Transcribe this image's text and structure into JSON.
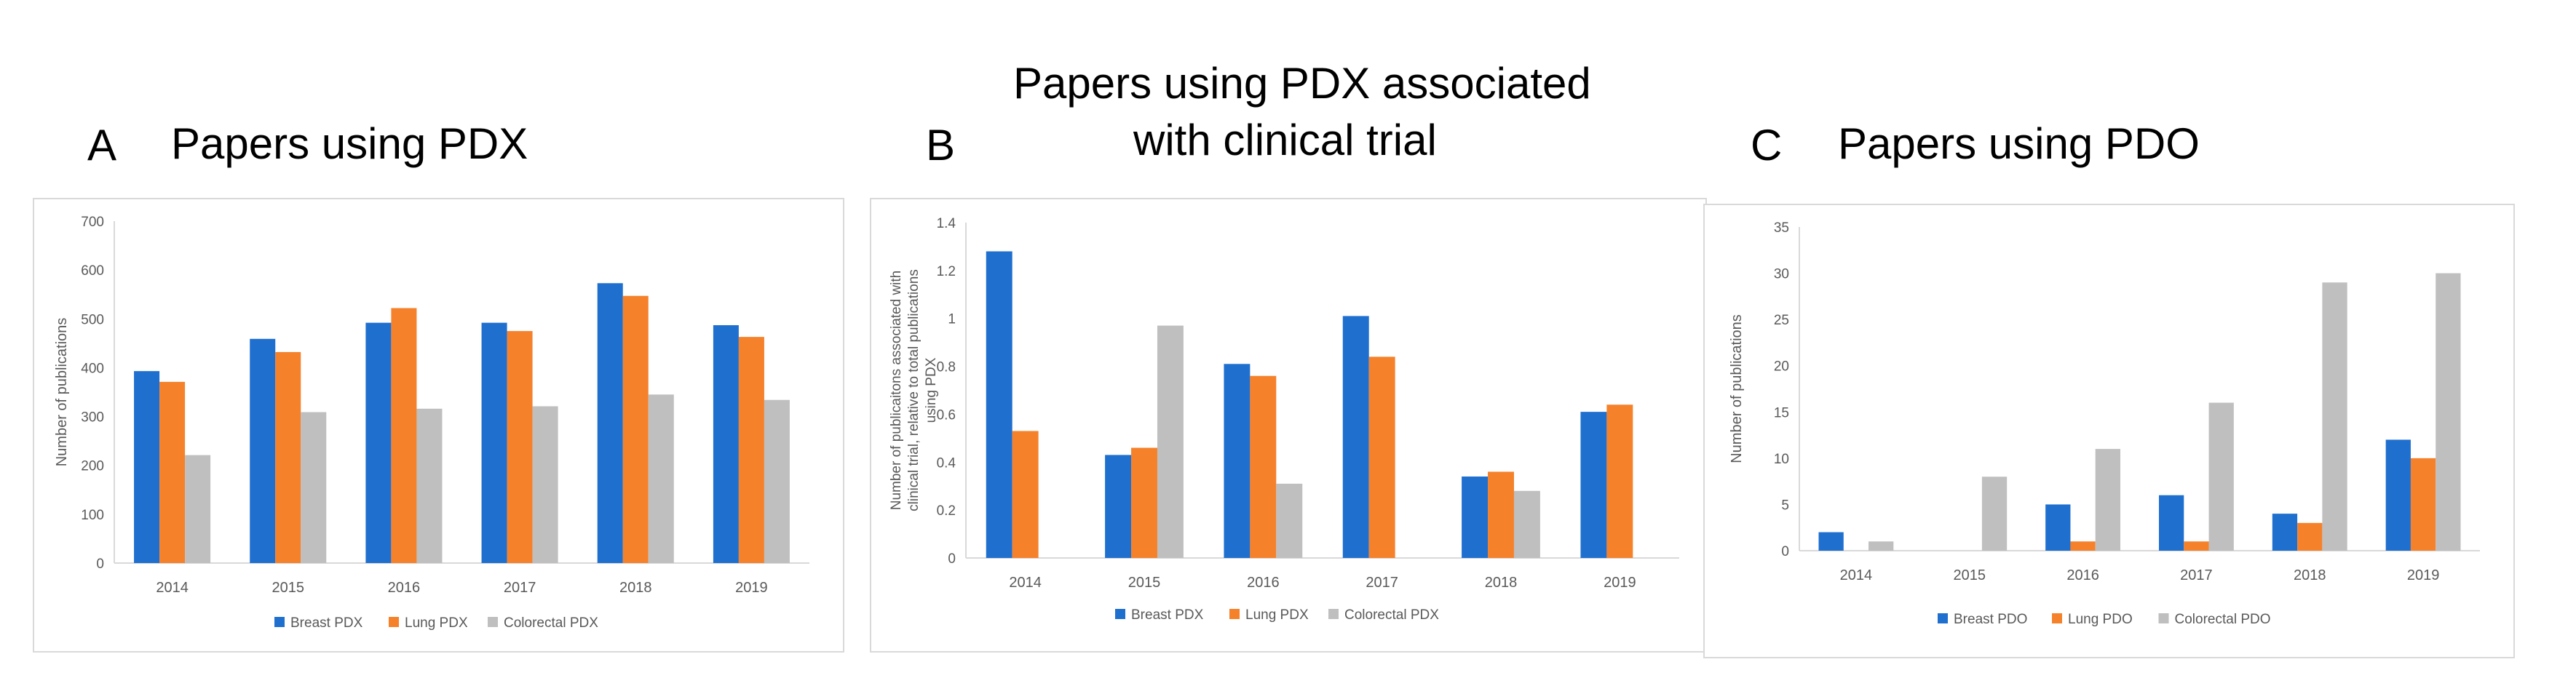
{
  "panels": [
    {
      "letter": "A",
      "title": "Papers using PDX"
    },
    {
      "letter": "B",
      "title_line1": "Papers using PDX associated",
      "title_line2": "with clinical trial"
    },
    {
      "letter": "C",
      "title": "Papers using PDO"
    }
  ],
  "colors": {
    "blue": "#1f6fcf",
    "orange": "#f5812b",
    "gray": "#bfbfbf",
    "axis": "#d9d9d9",
    "text": "#595959"
  },
  "chart_data": [
    {
      "type": "bar",
      "title": "Papers using PDX",
      "categories": [
        "2014",
        "2015",
        "2016",
        "2017",
        "2018",
        "2019"
      ],
      "series": [
        {
          "name": "Breast PDX",
          "values": [
            393,
            459,
            492,
            492,
            573,
            487
          ]
        },
        {
          "name": "Lung PDX",
          "values": [
            371,
            432,
            522,
            475,
            547,
            463
          ]
        },
        {
          "name": "Colorectal PDX",
          "values": [
            221,
            309,
            316,
            321,
            345,
            334
          ]
        }
      ],
      "ylabel": "Number of publications",
      "ylim": [
        0,
        700
      ],
      "yticks": [
        "0",
        "100",
        "200",
        "300",
        "400",
        "500",
        "600",
        "700"
      ],
      "legend": "bottom",
      "grid": false
    },
    {
      "type": "bar",
      "title": "Papers using PDX associated with clinical trial",
      "categories": [
        "2014",
        "2015",
        "2016",
        "2017",
        "2018",
        "2019"
      ],
      "series": [
        {
          "name": "Breast PDX",
          "values": [
            1.28,
            0.43,
            0.81,
            1.01,
            0.34,
            0.61
          ]
        },
        {
          "name": "Lung PDX",
          "values": [
            0.53,
            0.46,
            0.76,
            0.84,
            0.36,
            0.64
          ]
        },
        {
          "name": "Colorectal PDX",
          "values": [
            0,
            0.97,
            0.31,
            0,
            0.28,
            0
          ]
        }
      ],
      "ylabel_lines": [
        "Number of publicaitons associated with",
        "clinical trial, relative to total publications",
        "using PDX"
      ],
      "ylim": [
        0,
        1.4
      ],
      "yticks": [
        "0",
        "0.2",
        "0.4",
        "0.6",
        "0.8",
        "1",
        "1.2",
        "1.4"
      ],
      "legend": "bottom",
      "grid": false
    },
    {
      "type": "bar",
      "title": "Papers using PDO",
      "categories": [
        "2014",
        "2015",
        "2016",
        "2017",
        "2018",
        "2019"
      ],
      "series": [
        {
          "name": "Breast PDO",
          "values": [
            2,
            0,
            5,
            6,
            4,
            12
          ]
        },
        {
          "name": "Lung  PDO",
          "values": [
            0,
            0,
            1,
            1,
            3,
            10
          ]
        },
        {
          "name": "Colorectal PDO",
          "values": [
            1,
            8,
            11,
            16,
            29,
            30
          ]
        }
      ],
      "ylabel": "Number of publications",
      "ylim": [
        0,
        35
      ],
      "yticks": [
        "0",
        "5",
        "10",
        "15",
        "20",
        "25",
        "30",
        "35"
      ],
      "legend": "bottom",
      "grid": false
    }
  ]
}
